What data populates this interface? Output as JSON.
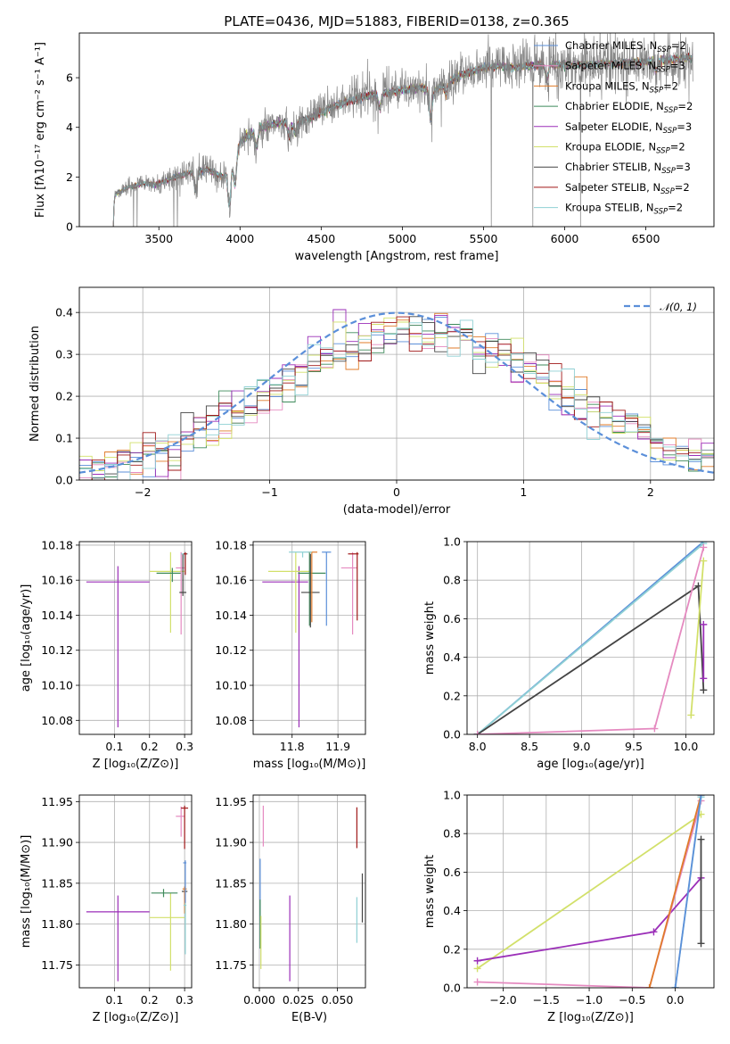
{
  "figure_title": "PLATE=0436, MJD=51883, FIBERID=0138, z=0.365",
  "colors": {
    "Chabrier MILES": "#5b8fd9",
    "Salpeter MILES": "#e58ac0",
    "Kroupa MILES": "#e07b2a",
    "Chabrier ELODIE": "#3e8a5b",
    "Salpeter ELODIE": "#9b2fb8",
    "Kroupa ELODIE": "#d2e06a",
    "Chabrier STELIB": "#444444",
    "Salpeter STELIB": "#a01818",
    "Kroupa STELIB": "#8fd0d4",
    "data": "#808080",
    "gaussian": "#5b8fd9"
  },
  "chart_data": [
    {
      "id": "spectrum",
      "type": "line",
      "xlabel": "wavelength [Angstrom, rest frame]",
      "ylabel": "Flux [fλ10⁻¹⁷ erg cm⁻² s⁻¹ A⁻¹]",
      "xlim": [
        3010,
        6920
      ],
      "ylim": [
        0,
        7.8
      ],
      "xticks": [
        3500,
        4000,
        4500,
        5000,
        5500,
        6000,
        6500
      ],
      "yticks": [
        0,
        2,
        4,
        6
      ],
      "x_start": 3220,
      "x_end": 6790,
      "continuum_knots": [
        [
          3220,
          0
        ],
        [
          3221,
          0.7
        ],
        [
          3230,
          1.3
        ],
        [
          3300,
          1.55
        ],
        [
          3400,
          1.75
        ],
        [
          3480,
          1.7
        ],
        [
          3560,
          1.9
        ],
        [
          3700,
          2.2
        ],
        [
          3800,
          2.3
        ],
        [
          3900,
          2.0
        ],
        [
          3950,
          2.6
        ],
        [
          4000,
          3.4
        ],
        [
          4100,
          3.9
        ],
        [
          4200,
          4.1
        ],
        [
          4300,
          4.2
        ],
        [
          4400,
          4.3
        ],
        [
          4500,
          4.6
        ],
        [
          4600,
          4.9
        ],
        [
          4700,
          5.1
        ],
        [
          4800,
          5.3
        ],
        [
          4900,
          5.4
        ],
        [
          5000,
          5.5
        ],
        [
          5100,
          5.6
        ],
        [
          5200,
          5.45
        ],
        [
          5300,
          5.9
        ],
        [
          5400,
          6.2
        ],
        [
          5500,
          6.4
        ],
        [
          5600,
          6.45
        ],
        [
          5700,
          6.4
        ],
        [
          5800,
          6.5
        ],
        [
          5900,
          6.55
        ],
        [
          6000,
          6.5
        ],
        [
          6200,
          6.55
        ],
        [
          6400,
          6.6
        ],
        [
          6600,
          6.7
        ],
        [
          6790,
          6.8
        ]
      ],
      "series": [
        {
          "name": "Chabrier MILES, N",
          "sub": "SSP",
          "suffix": "=2"
        },
        {
          "name": "Salpeter MILES, N",
          "sub": "SSP",
          "suffix": "=3"
        },
        {
          "name": "Kroupa MILES, N",
          "sub": "SSP",
          "suffix": "=2"
        },
        {
          "name": "Chabrier ELODIE, N",
          "sub": "SSP",
          "suffix": "=2"
        },
        {
          "name": "Salpeter ELODIE, N",
          "sub": "SSP",
          "suffix": "=3"
        },
        {
          "name": "Kroupa ELODIE, N",
          "sub": "SSP",
          "suffix": "=2"
        },
        {
          "name": "Chabrier STELIB, N",
          "sub": "SSP",
          "suffix": "=3"
        },
        {
          "name": "Salpeter STELIB, N",
          "sub": "SSP",
          "suffix": "=2"
        },
        {
          "name": "Kroupa STELIB, N",
          "sub": "SSP",
          "suffix": "=2"
        }
      ],
      "legend_loc": "right"
    },
    {
      "id": "residuals",
      "type": "line",
      "xlabel": "(data-model)/error",
      "ylabel": "Normed distribution",
      "xlim": [
        -2.5,
        2.5
      ],
      "ylim": [
        0,
        0.46
      ],
      "xticks": [
        -2,
        -1,
        0,
        1,
        2
      ],
      "yticks": [
        0.0,
        0.1,
        0.2,
        0.3,
        0.4
      ],
      "bin_width": 0.1,
      "gaussian_label": "𝒩(0, 1)",
      "grid": true,
      "legend_loc": "top-right"
    },
    {
      "id": "age-vs-Z",
      "type": "scatter",
      "xlabel": "Z [log₁₀(Z/Z⊙)]",
      "ylabel": "age  [log₁₀(age/yr)]",
      "xlim": [
        0.0,
        0.32
      ],
      "ylim": [
        10.072,
        10.182
      ],
      "xticks": [
        0.1,
        0.2,
        0.3
      ],
      "yticks": [
        10.08,
        10.1,
        10.12,
        10.14,
        10.16,
        10.18
      ],
      "grid": true,
      "points": [
        {
          "m": "Salpeter ELODIE",
          "x": 0.11,
          "y": 10.159,
          "xerr": [
            0.09,
            0.09
          ],
          "yerr": [
            0.083,
            0.009
          ]
        },
        {
          "m": "Kroupa ELODIE",
          "x": 0.26,
          "y": 10.165,
          "xerr": [
            0.06,
            0.04
          ],
          "yerr": [
            0.035,
            0.011
          ]
        },
        {
          "m": "Chabrier ELODIE",
          "x": 0.265,
          "y": 10.164,
          "xerr": [
            0.045,
            0.025
          ],
          "yerr": [
            0.005,
            0.003
          ]
        },
        {
          "m": "Salpeter MILES",
          "x": 0.29,
          "y": 10.167,
          "xerr": [
            0.015,
            0.01
          ],
          "yerr": [
            0.038,
            0.009
          ]
        },
        {
          "m": "Chabrier STELIB",
          "x": 0.295,
          "y": 10.153,
          "xerr": [
            0.01,
            0.01
          ],
          "yerr": [
            0.002,
            0.022
          ]
        },
        {
          "m": "Kroupa STELIB",
          "x": 0.3,
          "y": 10.175,
          "xerr": [
            0.01,
            0.01
          ],
          "yerr": [
            0.003,
            0.001
          ]
        },
        {
          "m": "Salpeter STELIB",
          "x": 0.302,
          "y": 10.175,
          "xerr": [
            0.005,
            0.005
          ],
          "yerr": [
            0.012,
            0.001
          ]
        }
      ]
    },
    {
      "id": "age-vs-mass",
      "type": "scatter",
      "xlabel": "mass [log₁₀(M/M⊙)]",
      "ylabel": "",
      "xlim": [
        11.715,
        11.96
      ],
      "ylim": [
        10.072,
        10.182
      ],
      "xticks": [
        11.8,
        11.9
      ],
      "yticks": [
        10.08,
        10.1,
        10.12,
        10.14,
        10.16,
        10.18
      ],
      "grid": true,
      "points": [
        {
          "m": "Salpeter ELODIE",
          "x": 11.815,
          "y": 10.159,
          "xerr": [
            0.08,
            0.02
          ],
          "yerr": [
            0.083,
            0.009
          ]
        },
        {
          "m": "Kroupa ELODIE",
          "x": 11.808,
          "y": 10.165,
          "xerr": [
            0.06,
            0.03
          ],
          "yerr": [
            0.035,
            0.011
          ]
        },
        {
          "m": "Chabrier ELODIE",
          "x": 11.838,
          "y": 10.164,
          "xerr": [
            0.025,
            0.035
          ],
          "yerr": [
            0.03,
            0.012
          ]
        },
        {
          "m": "Chabrier STELIB",
          "x": 11.84,
          "y": 10.153,
          "xerr": [
            0.02,
            0.02
          ],
          "yerr": [
            0.02,
            0.022
          ]
        },
        {
          "m": "Kroupa MILES",
          "x": 11.843,
          "y": 10.176,
          "xerr": [
            0.008,
            0.012
          ],
          "yerr": [
            0.04,
            0.0
          ]
        },
        {
          "m": "Chabrier MILES",
          "x": 11.875,
          "y": 10.176,
          "xerr": [
            0.01,
            0.01
          ],
          "yerr": [
            0.042,
            0.0
          ]
        },
        {
          "m": "Kroupa STELIB",
          "x": 11.823,
          "y": 10.176,
          "xerr": [
            0.03,
            0.02
          ],
          "yerr": [
            0.003,
            0.0
          ]
        },
        {
          "m": "Salpeter MILES",
          "x": 11.932,
          "y": 10.167,
          "xerr": [
            0.025,
            0.01
          ],
          "yerr": [
            0.038,
            0.009
          ]
        },
        {
          "m": "Salpeter STELIB",
          "x": 11.942,
          "y": 10.175,
          "xerr": [
            0.02,
            0.003
          ],
          "yerr": [
            0.038,
            0.001
          ]
        }
      ]
    },
    {
      "id": "weight-vs-age",
      "type": "line",
      "xlabel": "age  [log₁₀(age/yr)]",
      "ylabel": "mass weight",
      "xlim": [
        7.9,
        10.27
      ],
      "ylim": [
        0.0,
        1.0
      ],
      "xticks": [
        8.0,
        8.5,
        9.0,
        9.5,
        10.0
      ],
      "yticks": [
        0.0,
        0.2,
        0.4,
        0.6,
        0.8,
        1.0
      ],
      "grid": true,
      "series": [
        {
          "m": "Chabrier MILES",
          "x": [
            8.0,
            10.17
          ],
          "y": [
            0.0,
            1.0
          ]
        },
        {
          "m": "Kroupa STELIB",
          "x": [
            8.0,
            10.17
          ],
          "y": [
            0.0,
            0.99
          ]
        },
        {
          "m": "Chabrier STELIB",
          "x": [
            8.0,
            10.12,
            10.17
          ],
          "y": [
            0.0,
            0.77,
            0.23
          ]
        },
        {
          "m": "Salpeter MILES",
          "x": [
            8.0,
            9.7,
            10.17
          ],
          "y": [
            0.0,
            0.03,
            0.97
          ]
        },
        {
          "m": "Kroupa ELODIE",
          "x": [
            10.05,
            10.17
          ],
          "y": [
            0.1,
            0.9
          ]
        },
        {
          "m": "Salpeter ELODIE",
          "x": [
            10.17,
            10.17
          ],
          "y": [
            0.29,
            0.57
          ]
        }
      ]
    },
    {
      "id": "mass-vs-Z",
      "type": "scatter",
      "xlabel": "Z [log₁₀(Z/Z⊙)]",
      "ylabel": "mass [log₁₀(M/M⊙)]",
      "xlim": [
        0.0,
        0.32
      ],
      "ylim": [
        11.722,
        11.958
      ],
      "xticks": [
        0.1,
        0.2,
        0.3
      ],
      "yticks": [
        11.75,
        11.8,
        11.85,
        11.9,
        11.95
      ],
      "grid": true,
      "points": [
        {
          "m": "Salpeter ELODIE",
          "x": 0.11,
          "y": 11.815,
          "xerr": [
            0.09,
            0.09
          ],
          "yerr": [
            0.085,
            0.02
          ]
        },
        {
          "m": "Kroupa ELODIE",
          "x": 0.26,
          "y": 11.808,
          "xerr": [
            0.06,
            0.04
          ],
          "yerr": [
            0.065,
            0.03
          ]
        },
        {
          "m": "Chabrier ELODIE",
          "x": 0.24,
          "y": 11.838,
          "xerr": [
            0.035,
            0.04
          ],
          "yerr": [
            0.005,
            0.005
          ]
        },
        {
          "m": "Salpeter MILES",
          "x": 0.29,
          "y": 11.932,
          "xerr": [
            0.015,
            0.01
          ],
          "yerr": [
            0.025,
            0.012
          ]
        },
        {
          "m": "Salpeter STELIB",
          "x": 0.3,
          "y": 11.942,
          "xerr": [
            0.01,
            0.01
          ],
          "yerr": [
            0.05,
            0.003
          ]
        },
        {
          "m": "Chabrier STELIB",
          "x": 0.3,
          "y": 11.84,
          "xerr": [
            0.008,
            0.008
          ],
          "yerr": [
            0.01,
            0.005
          ]
        },
        {
          "m": "Kroupa MILES",
          "x": 0.3,
          "y": 11.843,
          "xerr": [
            0.006,
            0.006
          ],
          "yerr": [
            0.03,
            0.003
          ]
        },
        {
          "m": "Chabrier MILES",
          "x": 0.302,
          "y": 11.875,
          "xerr": [
            0.006,
            0.003
          ],
          "yerr": [
            0.05,
            0.003
          ]
        },
        {
          "m": "Kroupa STELIB",
          "x": 0.302,
          "y": 11.823,
          "xerr": [
            0.005,
            0.003
          ],
          "yerr": [
            0.06,
            0.003
          ]
        }
      ]
    },
    {
      "id": "mass-vs-EBV",
      "type": "scatter",
      "xlabel": "E(B-V)",
      "ylabel": "",
      "xlim": [
        -0.004,
        0.068
      ],
      "ylim": [
        11.722,
        11.958
      ],
      "xticks": [
        0.0,
        0.025,
        0.05
      ],
      "xticklabels": [
        "0.000",
        "0.025",
        "0.050"
      ],
      "yticks": [
        11.75,
        11.8,
        11.85,
        11.9,
        11.95
      ],
      "grid": true,
      "points": [
        {
          "m": "Chabrier MILES",
          "x": 0.0005,
          "y": 11.85,
          "yerr": [
            0.04,
            0.03
          ]
        },
        {
          "m": "Chabrier ELODIE",
          "x": 0.0005,
          "y": 11.8,
          "yerr": [
            0.03,
            0.03
          ]
        },
        {
          "m": "Kroupa ELODIE",
          "x": 0.001,
          "y": 11.78,
          "yerr": [
            0.035,
            0.03
          ]
        },
        {
          "m": "Salpeter MILES",
          "x": 0.0025,
          "y": 11.92,
          "yerr": [
            0.025,
            0.025
          ]
        },
        {
          "m": "Salpeter ELODIE",
          "x": 0.0195,
          "y": 11.785,
          "yerr": [
            0.055,
            0.05
          ]
        },
        {
          "m": "Salpeter STELIB",
          "x": 0.0625,
          "y": 11.918,
          "yerr": [
            0.025,
            0.025
          ]
        },
        {
          "m": "Kroupa STELIB",
          "x": 0.0625,
          "y": 11.805,
          "yerr": [
            0.028,
            0.028
          ]
        },
        {
          "m": "Chabrier STELIB",
          "x": 0.066,
          "y": 11.832,
          "yerr": [
            0.03,
            0.03
          ]
        }
      ]
    },
    {
      "id": "weight-vs-Z",
      "type": "line",
      "xlabel": "Z [log₁₀(Z/Z⊙)]",
      "ylabel": "mass weight",
      "xlim": [
        -2.42,
        0.45
      ],
      "ylim": [
        0.0,
        1.0
      ],
      "xticks": [
        -2.0,
        -1.5,
        -1.0,
        -0.5,
        0.0
      ],
      "yticks": [
        0.0,
        0.2,
        0.4,
        0.6,
        0.8,
        1.0
      ],
      "grid": true,
      "series": [
        {
          "m": "Kroupa ELODIE",
          "x": [
            -2.3,
            0.3
          ],
          "y": [
            0.1,
            0.9
          ]
        },
        {
          "m": "Salpeter ELODIE",
          "x": [
            -2.3,
            -0.25,
            0.3
          ],
          "y": [
            0.14,
            0.29,
            0.57
          ]
        },
        {
          "m": "Salpeter MILES",
          "x": [
            -2.3,
            -0.3,
            0.3
          ],
          "y": [
            0.03,
            0.0,
            0.97
          ]
        },
        {
          "m": "Kroupa MILES",
          "x": [
            -0.3,
            0.3
          ],
          "y": [
            0.0,
            1.0
          ]
        },
        {
          "m": "Chabrier STELIB",
          "x": [
            0.3,
            0.3
          ],
          "y": [
            0.23,
            0.77
          ]
        },
        {
          "m": "Kroupa STELIB",
          "x": [
            0.0,
            0.3
          ],
          "y": [
            0.0,
            0.99
          ]
        },
        {
          "m": "Chabrier MILES",
          "x": [
            0.0,
            0.3
          ],
          "y": [
            0.0,
            1.0
          ]
        }
      ]
    }
  ]
}
